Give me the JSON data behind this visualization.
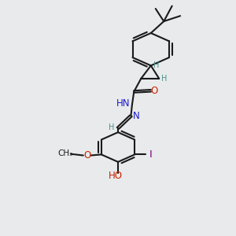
{
  "bg_color": "#e8eaeb",
  "line_color": "#1a1a1a",
  "bond_lw": 1.5,
  "font_size": 8.5,
  "teal": "#4a9090",
  "blue": "#1a1acc",
  "red": "#cc2200",
  "purple": "#800080",
  "xlim": [
    0,
    10
  ],
  "ylim": [
    0,
    13
  ],
  "figsize": [
    3.0,
    3.0
  ],
  "dpi": 100
}
